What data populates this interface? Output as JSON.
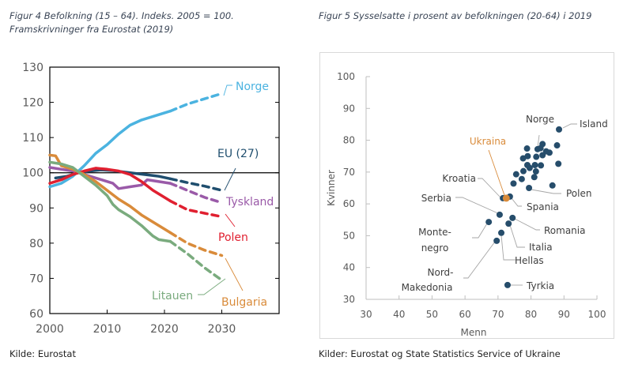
{
  "figure4": {
    "caption_line1": "Figur 4  Befolkning (15 – 64). Indeks. 2005 = 100.",
    "caption_line2": "Framskrivninger fra Eurostat (2019)",
    "source": "Kilde: Eurostat"
  },
  "figure5": {
    "caption": "Figur 5  Sysselsatte i prosent av befolkningen (20-64) i 2019",
    "source": "Kilder: Eurostat og State Statistics Service of Ukraine"
  },
  "chart_data": [
    {
      "type": "line",
      "title": "Befolkning (15 – 64). Indeks. 2005 = 100. Framskrivninger fra Eurostat (2019)",
      "xlabel": "",
      "ylabel": "",
      "xlim": [
        2000,
        2040
      ],
      "ylim": [
        60,
        130
      ],
      "xticks": [
        2000,
        2010,
        2020,
        2030
      ],
      "yticks": [
        60,
        70,
        80,
        90,
        100,
        110,
        120,
        130
      ],
      "reference_line": 100,
      "projection_start": 2021,
      "series": [
        {
          "name": "Norge",
          "color": "#4bb3e0",
          "x": [
            2000,
            2002,
            2004,
            2006,
            2008,
            2010,
            2012,
            2014,
            2016,
            2018,
            2020,
            2021,
            2024,
            2027,
            2030
          ],
          "y": [
            96,
            97,
            99,
            102,
            105.5,
            108,
            111,
            113.5,
            115,
            116,
            117,
            117.5,
            119.5,
            121,
            122.5
          ]
        },
        {
          "name": "EU (27)",
          "color": "#1f4e6e",
          "x": [
            2001,
            2003,
            2005,
            2007,
            2009,
            2011,
            2013,
            2015,
            2017,
            2019,
            2021,
            2024,
            2027,
            2030
          ],
          "y": [
            98.5,
            99,
            100,
            100.5,
            100.8,
            100.6,
            100.2,
            99.8,
            99.4,
            99,
            98.3,
            97.2,
            96.2,
            95
          ]
        },
        {
          "name": "Tyskland",
          "color": "#9a5aa8",
          "x": [
            2000,
            2002,
            2004,
            2005,
            2007,
            2009,
            2011,
            2012,
            2014,
            2016,
            2017,
            2019,
            2021,
            2024,
            2027,
            2030
          ],
          "y": [
            101.5,
            101,
            100.5,
            100,
            99,
            98,
            97,
            95.5,
            96,
            96.5,
            98,
            97.5,
            97,
            95,
            93,
            91.5
          ]
        },
        {
          "name": "Polen",
          "color": "#e02030",
          "x": [
            2000,
            2002,
            2004,
            2006,
            2008,
            2010,
            2012,
            2014,
            2016,
            2018,
            2020,
            2021,
            2024,
            2027,
            2030
          ],
          "y": [
            97,
            98,
            99.5,
            100.5,
            101.3,
            101,
            100.5,
            99.5,
            97.5,
            95,
            93,
            92,
            89.5,
            88.5,
            87.5
          ]
        },
        {
          "name": "Bulgaria",
          "color": "#d98b3a",
          "x": [
            2000,
            2001,
            2002,
            2004,
            2006,
            2008,
            2010,
            2012,
            2014,
            2016,
            2018,
            2020,
            2021,
            2024,
            2027,
            2030
          ],
          "y": [
            105,
            104.8,
            102,
            101,
            99.5,
            97.5,
            95,
            92.5,
            90.5,
            88,
            86,
            84,
            83,
            80,
            78,
            76.5
          ]
        },
        {
          "name": "Litauen",
          "color": "#7aab7e",
          "x": [
            2000,
            2002,
            2004,
            2006,
            2008,
            2010,
            2011,
            2012,
            2014,
            2016,
            2018,
            2019,
            2021,
            2024,
            2027,
            2030
          ],
          "y": [
            103,
            102.5,
            101.5,
            99,
            96.5,
            93.5,
            91,
            89.5,
            87.5,
            85,
            82,
            81,
            80.5,
            77,
            73,
            69.5
          ]
        }
      ],
      "labels": [
        "Norge",
        "EU (27)",
        "Tyskland",
        "Polen",
        "Bulgaria",
        "Litauen"
      ]
    },
    {
      "type": "scatter",
      "title": "Sysselsatte i prosent av befolkningen (20-64) i 2019",
      "xlabel": "Menn",
      "ylabel": "Kvinner",
      "xlim": [
        30,
        100
      ],
      "ylim": [
        30,
        100
      ],
      "xticks": [
        30,
        40,
        50,
        60,
        70,
        80,
        90,
        100
      ],
      "yticks": [
        30,
        40,
        50,
        60,
        70,
        80,
        90,
        100
      ],
      "point_color": "#264d6b",
      "highlight_color": "#d98b3a",
      "labeled_points": [
        {
          "name": "Island",
          "x": 88.5,
          "y": 83.4
        },
        {
          "name": "Norge",
          "x": 82,
          "y": 77.2
        },
        {
          "name": "Polen",
          "x": 79.4,
          "y": 65
        },
        {
          "name": "Ukraina",
          "x": 72.5,
          "y": 61.8,
          "highlight": true
        },
        {
          "name": "Kroatia",
          "x": 71.5,
          "y": 61.8
        },
        {
          "name": "Spania",
          "x": 73.6,
          "y": 62.3
        },
        {
          "name": "Serbia",
          "x": 70.5,
          "y": 56.6
        },
        {
          "name": "Romania",
          "x": 74.4,
          "y": 55.6
        },
        {
          "name": "Italia",
          "x": 73.2,
          "y": 53.8
        },
        {
          "name": "Monte-negro",
          "x": 67.2,
          "y": 54.3
        },
        {
          "name": "Hellas",
          "x": 71,
          "y": 50.9
        },
        {
          "name": "Nord-Makedonia",
          "x": 69.6,
          "y": 48.4
        },
        {
          "name": "Tyrkia",
          "x": 72.9,
          "y": 34.5
        }
      ],
      "other_points": [
        {
          "x": 83.5,
          "y": 78.8
        },
        {
          "x": 82.9,
          "y": 77.5
        },
        {
          "x": 84.6,
          "y": 76.5
        },
        {
          "x": 87.9,
          "y": 78.4
        },
        {
          "x": 78.8,
          "y": 77.4
        },
        {
          "x": 79,
          "y": 75
        },
        {
          "x": 81.6,
          "y": 74.8
        },
        {
          "x": 83.5,
          "y": 75.3
        },
        {
          "x": 85.6,
          "y": 76.1
        },
        {
          "x": 77.6,
          "y": 74.3
        },
        {
          "x": 78.9,
          "y": 72.2
        },
        {
          "x": 79.6,
          "y": 71.3
        },
        {
          "x": 81.2,
          "y": 72.2
        },
        {
          "x": 83,
          "y": 72.1
        },
        {
          "x": 88.3,
          "y": 72.6
        },
        {
          "x": 75.5,
          "y": 69.3
        },
        {
          "x": 77.7,
          "y": 70.3
        },
        {
          "x": 81.5,
          "y": 70.2
        },
        {
          "x": 77.2,
          "y": 67.8
        },
        {
          "x": 81,
          "y": 68.4
        },
        {
          "x": 74.7,
          "y": 66.4
        },
        {
          "x": 86.5,
          "y": 65.8
        }
      ],
      "annotations": [
        "Island",
        "Norge",
        "Ukraina",
        "Kroatia",
        "Polen",
        "Serbia",
        "Spania",
        "Monte-",
        "negro",
        "Romania",
        "Italia",
        "Hellas",
        "Nord-",
        "Makedonia",
        "Tyrkia"
      ]
    }
  ]
}
